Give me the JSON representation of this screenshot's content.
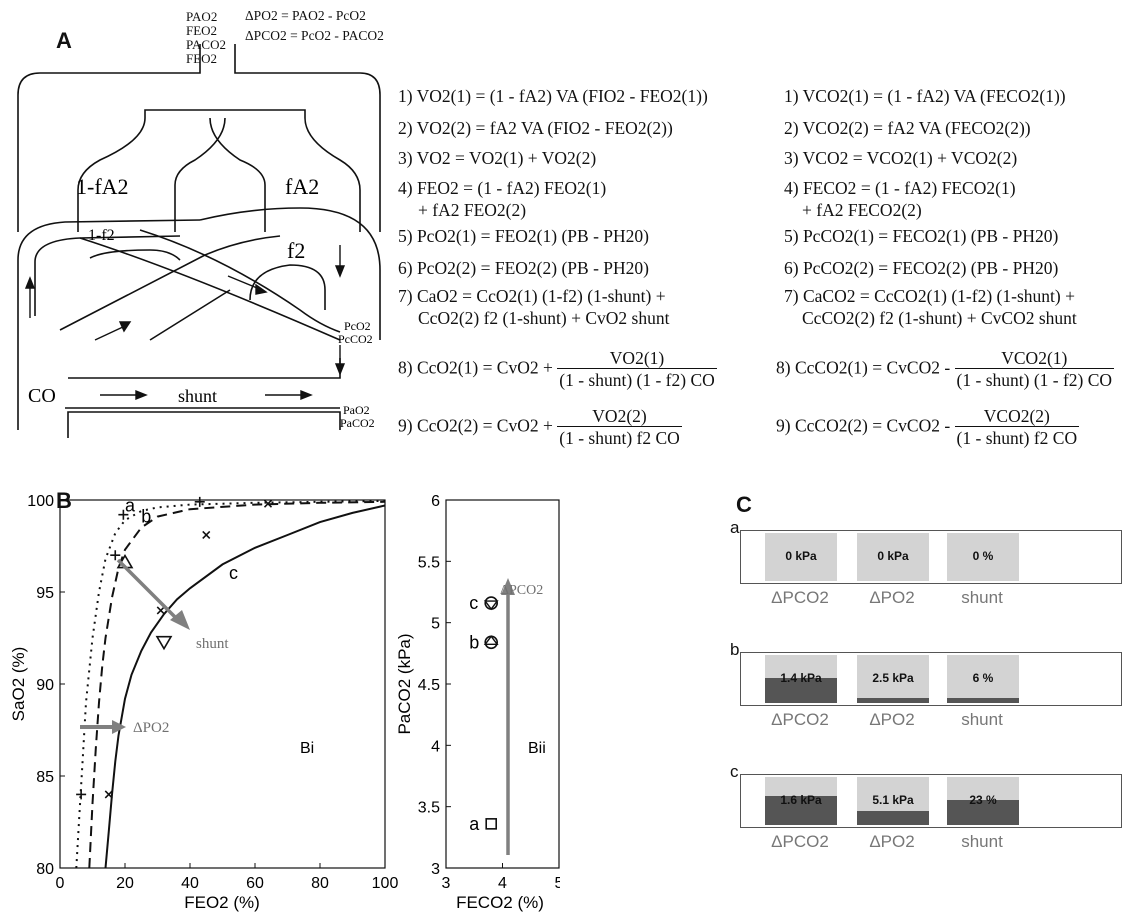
{
  "panelA": {
    "letter": "A",
    "top_labels": [
      "PAO2",
      "FEO2",
      "PACO2",
      "FEO2"
    ],
    "delta_defs": [
      "ΔPO2 = PAO2 - PcO2",
      "ΔPCO2 = PcO2 - PACO2"
    ],
    "lung_labels": {
      "left_alveolus": "1-fA2",
      "right_alveolus": "fA2",
      "left_cap": "1-f2",
      "right_cap": "f2",
      "cap_po2": "PcO2",
      "cap_pco2": "PcCO2",
      "co": "CO",
      "shunt": "shunt",
      "art_po2": "PaO2",
      "art_pco2": "PaCO2"
    },
    "o2_equations": [
      {
        "n": "1)",
        "lhs": "VO2(1)",
        "rhs": "= (1 - fA2) VA (FIO2 - FEO2(1))"
      },
      {
        "n": "2)",
        "lhs": "VO2(2)",
        "rhs": "= fA2 VA (FIO2 - FEO2(2))"
      },
      {
        "n": "3)",
        "lhs": "VO2",
        "rhs": "= VO2(1) + VO2(2)"
      },
      {
        "n": "4)",
        "lhs": "FEO2",
        "rhs": "= (1 - fA2) FEO2(1)",
        "cont": "+ fA2 FEO2(2)"
      },
      {
        "n": "5)",
        "lhs": "PcO2(1)",
        "rhs": "= FEO2(1) (PB - PH20)"
      },
      {
        "n": "6)",
        "lhs": "PcO2(2)",
        "rhs": "= FEO2(2) (PB - PH20)"
      },
      {
        "n": "7)",
        "lhs": "CaO2",
        "rhs": "= CcO2(1) (1-f2) (1-shunt) +",
        "cont": "CcO2(2) f2 (1-shunt) + CvO2 shunt"
      },
      {
        "n": "8)",
        "lhs": "CcO2(1)",
        "rhs": "= CvO2 +",
        "num": "VO2(1)",
        "den": "(1 - shunt) (1 - f2) CO"
      },
      {
        "n": "9)",
        "lhs": "CcO2(2)",
        "rhs": "= CvO2 +",
        "num": "VO2(2)",
        "den": "(1 - shunt) f2 CO"
      }
    ],
    "co2_equations": [
      {
        "n": "1)",
        "lhs": "VCO2(1)",
        "rhs": "= (1 - fA2) VA (FECO2(1))"
      },
      {
        "n": "2)",
        "lhs": "VCO2(2)",
        "rhs": "= fA2 VA (FECO2(2))"
      },
      {
        "n": "3)",
        "lhs": "VCO2",
        "rhs": "= VCO2(1) + VCO2(2)"
      },
      {
        "n": "4)",
        "lhs": "FECO2",
        "rhs": "= (1 - fA2) FECO2(1)",
        "cont": "+ fA2 FECO2(2)"
      },
      {
        "n": "5)",
        "lhs": "PcCO2(1)",
        "rhs": "= FECO2(1) (PB - PH20)"
      },
      {
        "n": "6)",
        "lhs": "PcCO2(2)",
        "rhs": "= FECO2(2) (PB - PH20)"
      },
      {
        "n": "7)",
        "lhs": "CaCO2",
        "rhs": "= CcCO2(1) (1-f2) (1-shunt) +",
        "cont": "CcCO2(2) f2 (1-shunt) + CvCO2 shunt"
      },
      {
        "n": "8)",
        "lhs": "CcCO2(1)",
        "rhs": "= CvCO2 -",
        "num": "VCO2(1)",
        "den": "(1 - shunt) (1 - f2) CO"
      },
      {
        "n": "9)",
        "lhs": "CcCO2(2)",
        "rhs": "= CvCO2 -",
        "num": "VCO2(2)",
        "den": "(1 - shunt) f2 CO"
      }
    ]
  },
  "panelB": {
    "letter": "B",
    "chart_data": [
      {
        "type": "line",
        "panel": "Bi",
        "xlabel": "FEO2 (%)",
        "ylabel": "SaO2 (%)",
        "xlim": [
          0,
          100
        ],
        "ylim": [
          80,
          100
        ],
        "xticks": [
          0,
          20,
          40,
          60,
          80,
          100
        ],
        "yticks": [
          80,
          85,
          90,
          95,
          100
        ],
        "curve_labels": [
          "a",
          "b",
          "c"
        ],
        "annotations": [
          "shunt",
          "ΔPO2"
        ],
        "series": [
          {
            "name": "a",
            "style": "dotted",
            "x": [
              5,
              6,
              7,
              8,
              10,
              12,
              14,
              17,
              20,
              25,
              30,
              40,
              60,
              80,
              100
            ],
            "y": [
              80,
              83,
              86,
              89,
              92.5,
              95,
              96.8,
              98.2,
              98.9,
              99.4,
              99.6,
              99.75,
              99.85,
              99.9,
              99.95
            ]
          },
          {
            "name": "b",
            "style": "dashed",
            "x": [
              9,
              10,
              11,
              12,
              13,
              14,
              16,
              18,
              20,
              25,
              30,
              40,
              60,
              80,
              100
            ],
            "y": [
              80,
              83.5,
              86.5,
              89,
              91,
              92.5,
              94.7,
              96.3,
              97.3,
              98.5,
              99.1,
              99.5,
              99.75,
              99.85,
              99.9
            ]
          },
          {
            "name": "c",
            "style": "solid",
            "x": [
              14,
              15,
              16,
              17,
              18,
              20,
              22,
              25,
              28,
              32,
              36,
              40,
              50,
              60,
              70,
              80,
              90,
              100
            ],
            "y": [
              80,
              82,
              84,
              85.8,
              87.2,
              89.2,
              90.5,
              91.8,
              92.8,
              93.8,
              94.6,
              95.2,
              96.5,
              97.4,
              98.1,
              98.8,
              99.3,
              99.7
            ]
          }
        ],
        "markers": [
          {
            "shape": "plus",
            "x": [
              6.5,
              17,
              19.5,
              43
            ],
            "y": [
              84,
              97,
              99.2,
              99.9
            ]
          },
          {
            "shape": "cross",
            "x": [
              15,
              31,
              45,
              64
            ],
            "y": [
              84,
              94,
              98.1,
              99.8
            ]
          },
          {
            "shape": "triangle-up",
            "x": [
              20
            ],
            "y": [
              96.6
            ]
          },
          {
            "shape": "triangle-down",
            "x": [
              32
            ],
            "y": [
              92.3
            ]
          }
        ]
      },
      {
        "type": "scatter",
        "panel": "Bii",
        "xlabel": "FECO2 (%)",
        "ylabel": "PaCO2 (kPa)",
        "xlim": [
          3,
          5
        ],
        "ylim": [
          3,
          6
        ],
        "xticks": [
          3,
          4,
          5
        ],
        "yticks": [
          3,
          3.5,
          4,
          4.5,
          5,
          5.5,
          6
        ],
        "annotations": [
          "ΔPCO2"
        ],
        "points": [
          {
            "label": "a",
            "x": 3.8,
            "y": 3.36,
            "shape": "square"
          },
          {
            "label": "b",
            "x": 3.8,
            "y": 4.84,
            "shape": "circle-triangle"
          },
          {
            "label": "c",
            "x": 3.8,
            "y": 5.16,
            "shape": "circle-triangle-down"
          }
        ]
      }
    ]
  },
  "panelC": {
    "letter": "C",
    "rows": [
      {
        "label": "a",
        "bars": [
          {
            "name": "ΔPCO2",
            "value_text": "0 kPa",
            "fraction": 0
          },
          {
            "name": "ΔPO2",
            "value_text": "0 kPa",
            "fraction": 0
          },
          {
            "name": "shunt",
            "value_text": "0 %",
            "fraction": 0
          }
        ]
      },
      {
        "label": "b",
        "bars": [
          {
            "name": "ΔPCO2",
            "value_text": "1.4 kPa",
            "fraction": 0.52
          },
          {
            "name": "ΔPO2",
            "value_text": "2.5 kPa",
            "fraction": 0.1
          },
          {
            "name": "shunt",
            "value_text": "6 %",
            "fraction": 0.11
          }
        ]
      },
      {
        "label": "c",
        "bars": [
          {
            "name": "ΔPCO2",
            "value_text": "1.6 kPa",
            "fraction": 0.6
          },
          {
            "name": "ΔPO2",
            "value_text": "5.1 kPa",
            "fraction": 0.3
          },
          {
            "name": "shunt",
            "value_text": "23 %",
            "fraction": 0.52
          }
        ]
      }
    ],
    "colors": {
      "bg": "#d3d3d3",
      "fill": "#555555"
    }
  }
}
